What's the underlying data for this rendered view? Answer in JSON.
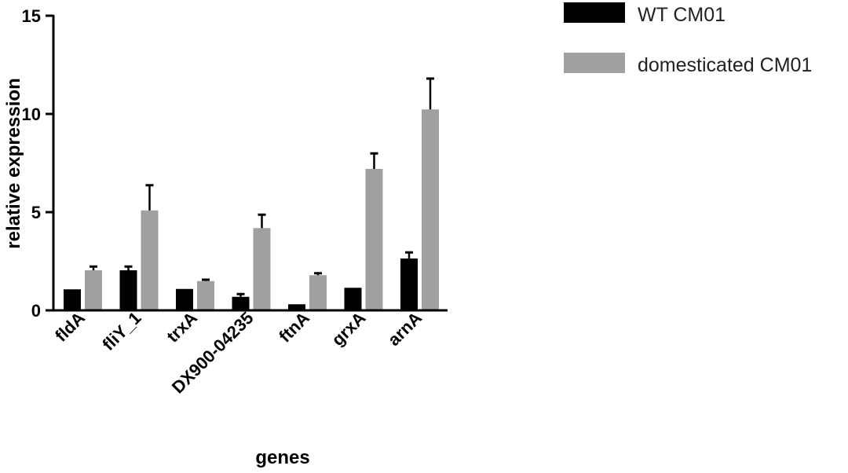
{
  "chart_data": {
    "type": "bar",
    "title": "",
    "xlabel": "genes",
    "ylabel": "relative expression",
    "ylim": [
      0,
      15
    ],
    "yticks": [
      0,
      5,
      10,
      15
    ],
    "grid": false,
    "legend_position": "top-right",
    "categories": [
      "fldA",
      "fliY_1",
      "trxA",
      "DX900-04235",
      "ftnA",
      "grxA",
      "arnA"
    ],
    "series": [
      {
        "name": "WT CM01",
        "color": "#000000",
        "values": [
          1.07,
          2.04,
          1.09,
          0.69,
          0.31,
          1.15,
          2.64
        ],
        "error_upper": [
          1.07,
          2.23,
          1.09,
          0.83,
          0.31,
          1.15,
          2.95
        ]
      },
      {
        "name": "domesticated CM01",
        "color": "#a0a0a3",
        "values": [
          2.04,
          5.09,
          1.49,
          4.19,
          1.79,
          7.2,
          10.23
        ],
        "error_upper": [
          2.23,
          6.37,
          1.56,
          4.87,
          1.89,
          7.99,
          11.8
        ]
      }
    ]
  }
}
